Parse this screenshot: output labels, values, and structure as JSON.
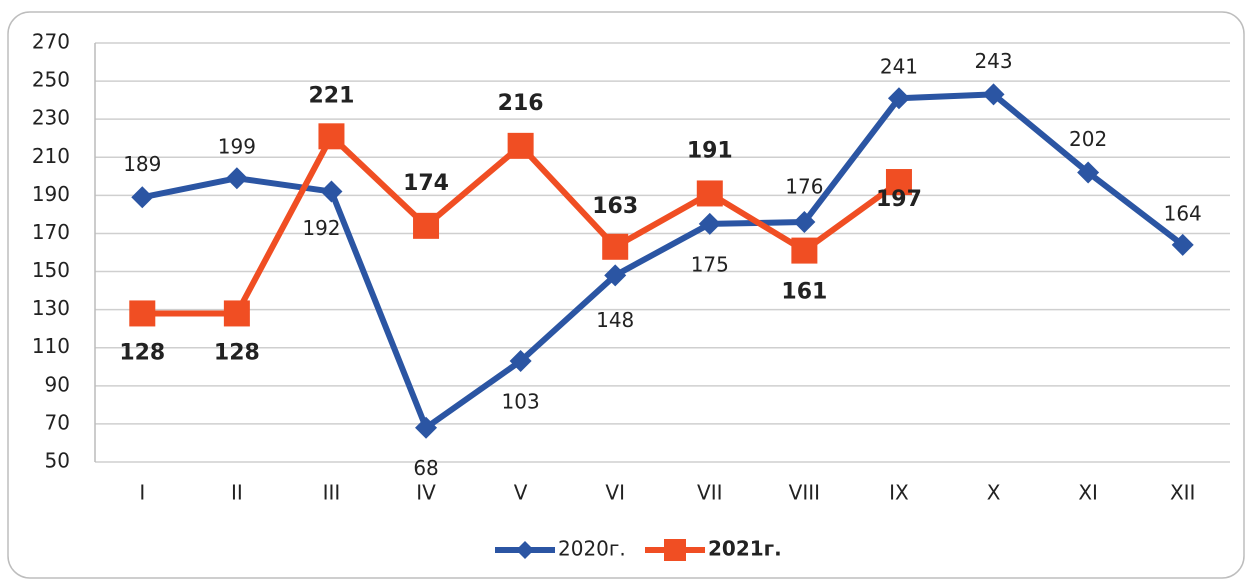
{
  "chart_data": {
    "type": "line",
    "categories": [
      "I",
      "II",
      "III",
      "IV",
      "V",
      "VI",
      "VII",
      "VIII",
      "IX",
      "X",
      "XI",
      "XII"
    ],
    "series": [
      {
        "name": "2020г.",
        "color": "#2b55a3",
        "values": [
          189,
          199,
          192,
          68,
          103,
          148,
          175,
          176,
          241,
          243,
          202,
          164
        ]
      },
      {
        "name": "2021г.",
        "color": "#f04e23",
        "values": [
          128,
          128,
          221,
          174,
          216,
          163,
          191,
          161,
          197,
          null,
          null,
          null
        ]
      }
    ],
    "ylim": [
      50,
      270
    ],
    "yticks": [
      50,
      70,
      90,
      110,
      130,
      150,
      170,
      190,
      210,
      230,
      250,
      270
    ],
    "grid": true,
    "legend": "bottom"
  }
}
